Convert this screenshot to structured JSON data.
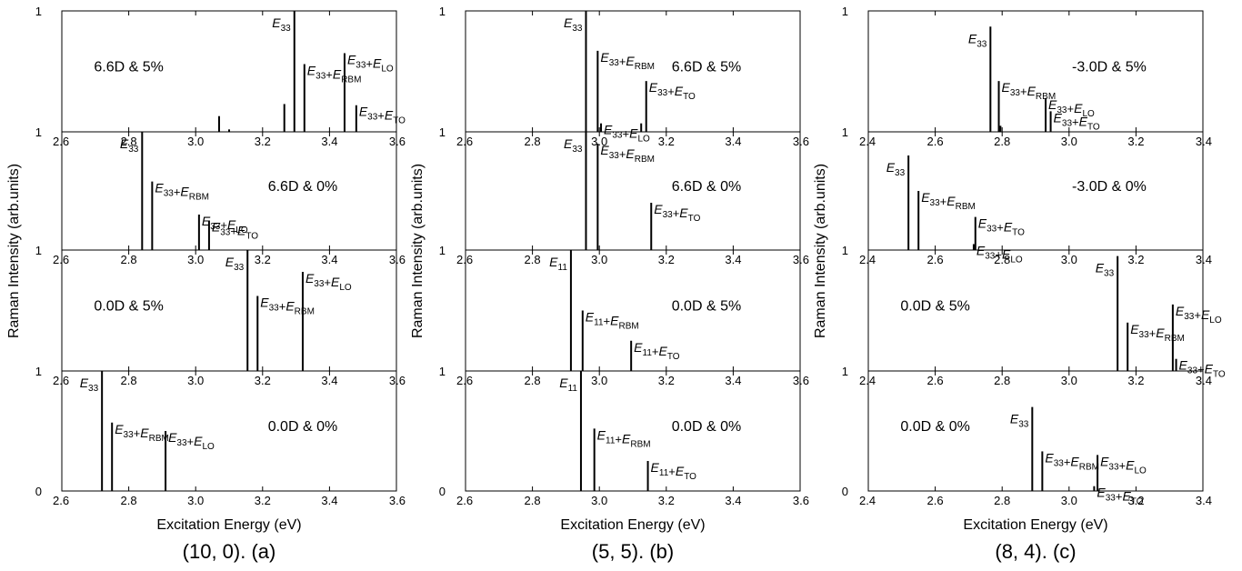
{
  "chart_data": [
    {
      "type": "stem",
      "title": "(10, 0). (a)",
      "x_label": "Excitation Energy (eV)",
      "y_label": "Raman Intensity (arb.units)",
      "xlim": [
        2.6,
        3.6
      ],
      "xticks": [
        2.6,
        2.8,
        {
          "value": 3,
          "label": "3.0"
        },
        3.2,
        3.4,
        3.6
      ],
      "ylim": [
        0,
        1
      ],
      "color": "#000000",
      "panels": [
        {
          "annotation": "6.6D & 5%",
          "yticks": [
            1
          ],
          "x": [
            3.07,
            3.1,
            3.265,
            3.295,
            3.325,
            3.445,
            3.48
          ],
          "values": [
            0.13,
            0.02,
            0.23,
            1.0,
            0.56,
            0.65,
            0.22
          ],
          "labels": [
            null,
            null,
            null,
            "E33",
            "E33+ERBM",
            "E33+ELO",
            "E33+ETO"
          ]
        },
        {
          "annotation": "6.6D & 0%",
          "yticks": [
            1
          ],
          "x": [
            2.84,
            2.87,
            3.01,
            3.04
          ],
          "values": [
            1.0,
            0.58,
            0.3,
            0.25
          ],
          "labels": [
            "E33",
            "E33+ERBM",
            "E33+ELO",
            "E33+ETO"
          ]
        },
        {
          "annotation": "0.0D & 5%",
          "yticks": [
            1
          ],
          "x": [
            3.155,
            3.185,
            3.32
          ],
          "values": [
            1.0,
            0.62,
            0.82
          ],
          "labels": [
            "E33",
            "E33+ERBM",
            "E33+ELO"
          ]
        },
        {
          "annotation": "0.0D & 0%",
          "yticks": [
            0,
            1
          ],
          "x": [
            2.72,
            2.75,
            2.91
          ],
          "values": [
            1.0,
            0.57,
            0.5
          ],
          "labels": [
            "E33",
            "E33+ERBM",
            "E33+ELO"
          ]
        }
      ]
    },
    {
      "type": "stem",
      "title": "(5, 5). (b)",
      "x_label": "Excitation Energy (eV)",
      "y_label": "Raman Intensity (arb.units)",
      "xlim": [
        2.6,
        3.6
      ],
      "xticks": [
        2.6,
        2.8,
        {
          "value": 3,
          "label": "3.0"
        },
        3.2,
        3.4,
        3.6
      ],
      "ylim": [
        0,
        1
      ],
      "color": "#000000",
      "panels": [
        {
          "annotation": "6.6D & 5%",
          "yticks": [
            1
          ],
          "x": [
            2.96,
            2.995,
            3.005,
            3.125,
            3.14
          ],
          "values": [
            1.0,
            0.67,
            0.07,
            0.07,
            0.42
          ],
          "labels": [
            "E33",
            "E33+ERBM",
            "E33+ELO",
            null,
            "E33+ETO"
          ]
        },
        {
          "annotation": "6.6D & 0%",
          "yticks": [
            1
          ],
          "x": [
            2.96,
            2.995,
            3.155
          ],
          "values": [
            1.0,
            0.9,
            0.4
          ],
          "labels": [
            "E33",
            "E33+ERBM",
            "E33+ETO"
          ]
        },
        {
          "annotation": "0.0D & 5%",
          "yticks": [
            1
          ],
          "x": [
            2.915,
            2.95,
            3.095
          ],
          "values": [
            1.0,
            0.5,
            0.25
          ],
          "labels": [
            "E11",
            "E11+ERBM",
            "E11+ETO"
          ]
        },
        {
          "annotation": "0.0D & 0%",
          "yticks": [
            0,
            1
          ],
          "x": [
            2.945,
            2.985,
            3.145
          ],
          "values": [
            1.0,
            0.52,
            0.25
          ],
          "labels": [
            "E11",
            "E11+ERBM",
            "E11+ETO"
          ]
        }
      ]
    },
    {
      "type": "stem",
      "title": "(8, 4). (c)",
      "x_label": "Excitation Energy (eV)",
      "y_label": "Raman Intensity (arb.units)",
      "xlim": [
        2.4,
        3.4
      ],
      "xticks": [
        2.4,
        2.6,
        2.8,
        {
          "value": 3,
          "label": "3.0"
        },
        3.2,
        3.4
      ],
      "ylim": [
        0,
        1
      ],
      "color": "#000000",
      "panels": [
        {
          "annotation": "-3.0D & 5%",
          "yticks": [
            1
          ],
          "x": [
            2.765,
            2.79,
            2.795,
            2.93,
            2.945
          ],
          "values": [
            0.87,
            0.42,
            0.05,
            0.28,
            0.17
          ],
          "labels": [
            "E33",
            "E33+ERBM",
            null,
            "E33+ELO",
            "E33+ETO"
          ]
        },
        {
          "annotation": "-3.0D & 0%",
          "yticks": [
            1
          ],
          "x": [
            2.52,
            2.55,
            2.715,
            2.72
          ],
          "values": [
            0.8,
            0.5,
            0.05,
            0.28
          ],
          "labels": [
            "E33",
            "E33+ERBM",
            "E33+ELO",
            "E33+ETO"
          ]
        },
        {
          "annotation": "0.0D & 5%",
          "yticks": [
            1
          ],
          "x": [
            3.145,
            3.175,
            3.31,
            3.32
          ],
          "values": [
            0.95,
            0.4,
            0.55,
            0.1
          ],
          "labels": [
            "E33",
            "E33+ERBM",
            "E33+ELO",
            "E33+ETO"
          ]
        },
        {
          "annotation": "0.0D & 0%",
          "yticks": [
            0,
            1
          ],
          "x": [
            2.89,
            2.92,
            3.075,
            3.085
          ],
          "values": [
            0.7,
            0.33,
            0.04,
            0.3
          ],
          "labels": [
            "E33",
            "E33+ERBM",
            "E33+ETO",
            "E33+ELO"
          ]
        }
      ]
    }
  ]
}
